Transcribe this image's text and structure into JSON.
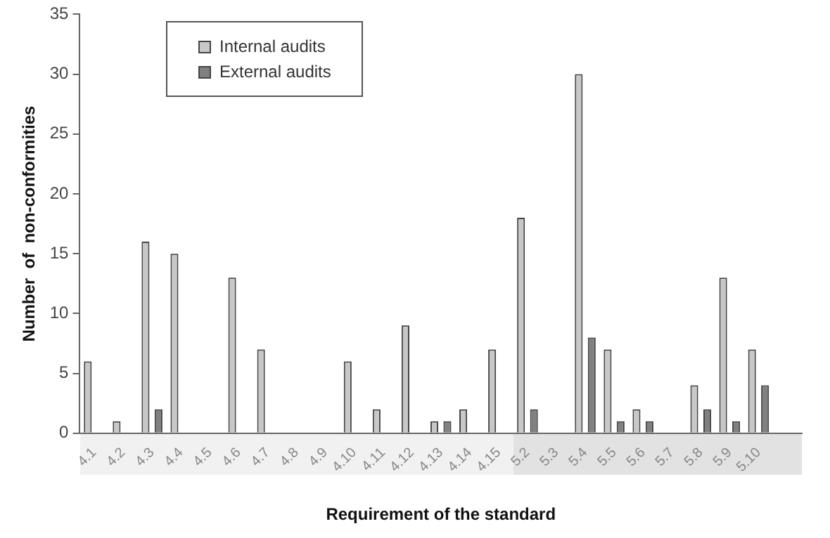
{
  "chart_data": {
    "type": "bar",
    "xlabel": "Requirement of the standard",
    "ylabel": "Number  of  non-conformities",
    "categories": [
      "4.1",
      "4.2",
      "4.3",
      "4.4",
      "4.5",
      "4.6",
      "4.7",
      "4.8",
      "4.9",
      "4.10",
      "4.11",
      "4.12",
      "4.13",
      "4.14",
      "4.15",
      "5.2",
      "5.3",
      "5.4",
      "5.5",
      "5.6",
      "5.7",
      "5.8",
      "5.9",
      "5.10",
      null
    ],
    "series": [
      {
        "name": "Internal audits",
        "color": "#c8c8c8",
        "values": [
          6,
          1,
          16,
          15,
          0,
          13,
          7,
          0,
          0,
          6,
          2,
          9,
          1,
          2,
          7,
          18,
          0,
          30,
          7,
          2,
          0,
          4,
          13,
          7,
          null
        ]
      },
      {
        "name": "External audits",
        "color": "#808080",
        "values": [
          0,
          0,
          2,
          0,
          0,
          0,
          0,
          0,
          0,
          0,
          0,
          0,
          1,
          0,
          0,
          2,
          0,
          8,
          1,
          1,
          0,
          2,
          1,
          4,
          null
        ]
      }
    ],
    "ylim": [
      0,
      35
    ],
    "yticks": [
      0,
      5,
      10,
      15,
      20,
      25,
      30,
      35
    ],
    "grid": false,
    "legend": "top left"
  }
}
